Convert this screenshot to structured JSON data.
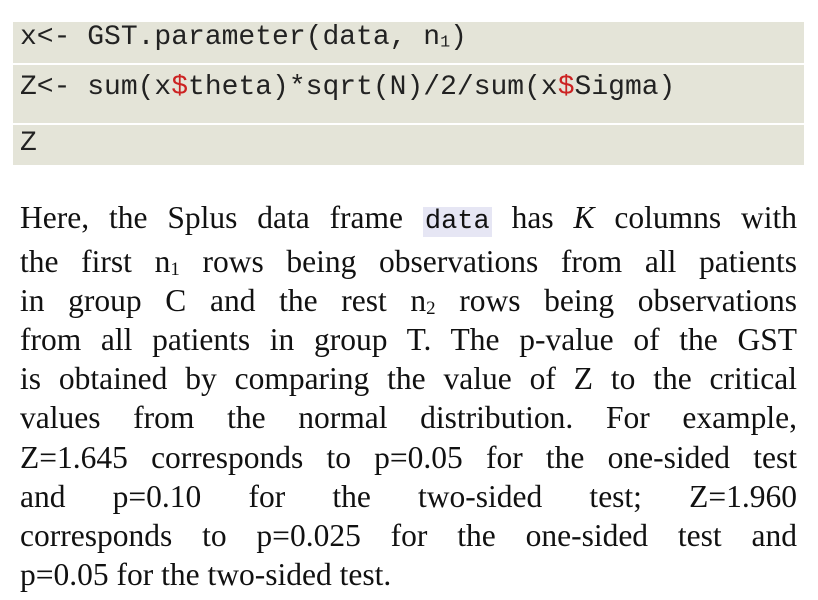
{
  "code": {
    "line1": {
      "prefix": "x<- GST.parameter(data, ",
      "var": "n",
      "sub": "1",
      "suffix": ")"
    },
    "line2": {
      "part1": "Z<- sum(x",
      "dollar1": "$",
      "part2": "theta)*sqrt(N)/2/sum(x",
      "dollar2": "$",
      "part3": "Sigma)"
    },
    "line3": "Z"
  },
  "prose": {
    "l1_before": "Here, the Splus data frame ",
    "l1_code": "data",
    "l1_mid": " has ",
    "l1_K": "K",
    "l1_after": " columns with",
    "l2_before": "the first n",
    "l2_sub": "1",
    "l2_after": " rows being observations from all patients",
    "l3_before": "in group C and the rest n",
    "l3_sub": "2",
    "l3_after": " rows being observations",
    "l4": "from all patients in group T. The p-value of the GST",
    "l5": "is obtained by comparing the value of Z to the critical",
    "l6": "values from the normal distribution. For example,",
    "l7": "Z=1.645 corresponds to p=0.05 for the one-sided test",
    "l8": "and p=0.10 for the two-sided test; Z=1.960",
    "l9": "corresponds to p=0.025 for the one-sided test and",
    "l10": "p=0.05 for the two-sided test."
  }
}
